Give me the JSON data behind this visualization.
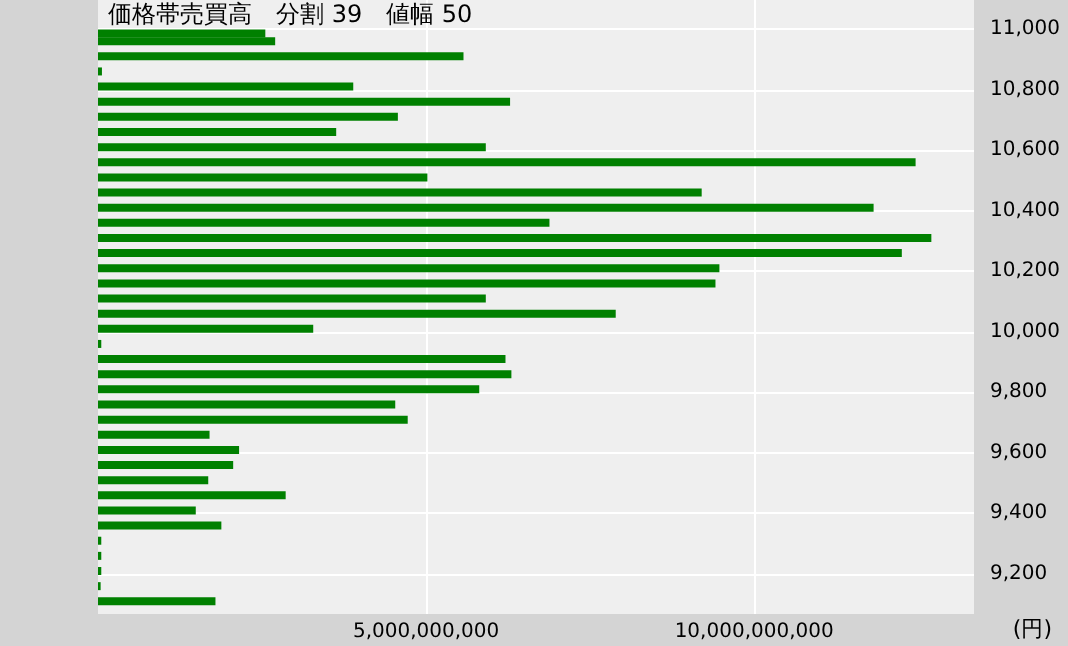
{
  "chart_data": {
    "type": "bar",
    "orientation": "horizontal",
    "title": "価格帯売買高　分割 39　値幅 50",
    "annotations": [
      "(円)"
    ],
    "x": [
      10985,
      10960,
      10910,
      10860,
      10810,
      10760,
      10710,
      10660,
      10610,
      10560,
      10510,
      10460,
      10410,
      10360,
      10310,
      10260,
      10210,
      10160,
      10110,
      10060,
      10010,
      9960,
      9910,
      9860,
      9810,
      9760,
      9710,
      9660,
      9610,
      9560,
      9510,
      9460,
      9410,
      9360,
      9310,
      9260,
      9210,
      9160,
      9110
    ],
    "values": [
      2550000000,
      2700000000,
      5570000000,
      60000000,
      3890000000,
      6280000000,
      4570000000,
      3630000000,
      5910000000,
      12460000000,
      5020000000,
      9200000000,
      11820000000,
      6880000000,
      12700000000,
      12250000000,
      9470000000,
      9410000000,
      5910000000,
      7890000000,
      3280000000,
      50000000,
      6210000000,
      6300000000,
      5810000000,
      4530000000,
      4720000000,
      1700000000,
      2150000000,
      2060000000,
      1680000000,
      2860000000,
      1490000000,
      1880000000,
      50000000,
      50000000,
      50000000,
      40000000,
      1790000000
    ],
    "color": "#008000",
    "xlim": [
      0,
      13350000000
    ],
    "xticks": [
      {
        "value": 5000000000,
        "label": "5,000,000,000"
      },
      {
        "value": 10000000000,
        "label": "10,000,000,000"
      }
    ],
    "ylim": [
      9068,
      11096
    ],
    "yticks": [
      {
        "value": 9200,
        "label": "9,200"
      },
      {
        "value": 9400,
        "label": "9,400"
      },
      {
        "value": 9600,
        "label": "9,600"
      },
      {
        "value": 9800,
        "label": "9,800"
      },
      {
        "value": 10000,
        "label": "10,000"
      },
      {
        "value": 10200,
        "label": "10,200"
      },
      {
        "value": 10400,
        "label": "10,400"
      },
      {
        "value": 10600,
        "label": "10,600"
      },
      {
        "value": 10800,
        "label": "10,800"
      },
      {
        "value": 11000,
        "label": "11,000"
      }
    ],
    "grid": true
  }
}
